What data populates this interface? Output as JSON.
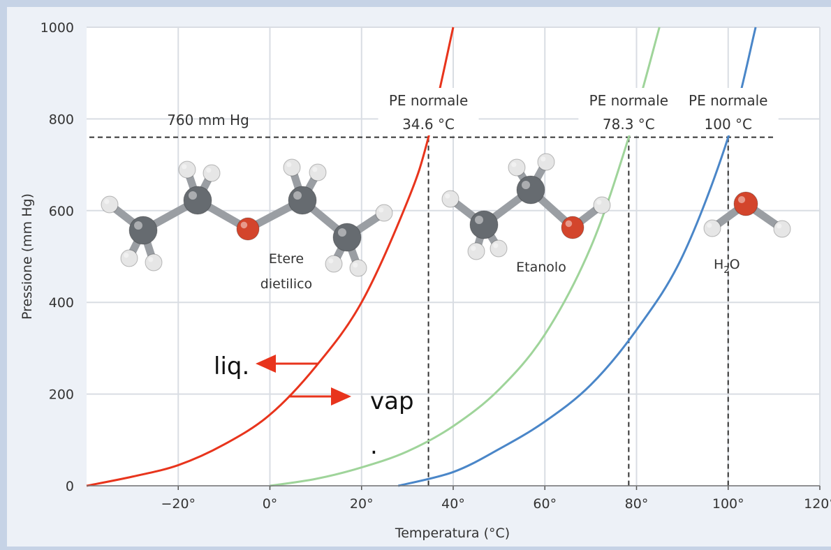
{
  "chart_data": {
    "type": "line",
    "xlabel": "Temperatura (°C)",
    "ylabel": "Pressione (mm Hg)",
    "xlim": [
      -40,
      120
    ],
    "ylim": [
      0,
      1000
    ],
    "x_ticks": [
      {
        "v": -20,
        "label": "−20°"
      },
      {
        "v": 0,
        "label": "0°"
      },
      {
        "v": 20,
        "label": "20°"
      },
      {
        "v": 40,
        "label": "40°"
      },
      {
        "v": 60,
        "label": "60°"
      },
      {
        "v": 80,
        "label": "80°"
      },
      {
        "v": 100,
        "label": "100°"
      },
      {
        "v": 120,
        "label": "120°"
      }
    ],
    "y_ticks": [
      {
        "v": 0,
        "label": "0"
      },
      {
        "v": 200,
        "label": "200"
      },
      {
        "v": 400,
        "label": "400"
      },
      {
        "v": 600,
        "label": "600"
      },
      {
        "v": 800,
        "label": "800"
      },
      {
        "v": 1000,
        "label": "1000"
      }
    ],
    "grid": true,
    "series": [
      {
        "key": "etere",
        "color": "#e8341c",
        "x": [
          -40,
          -30,
          -20,
          -10,
          0,
          10,
          20,
          30,
          34.6,
          40
        ],
        "y": [
          0,
          20,
          45,
          90,
          155,
          260,
          400,
          620,
          760,
          1000
        ]
      },
      {
        "key": "etanolo",
        "color": "#9fd49a",
        "x": [
          0,
          10,
          20,
          30,
          40,
          50,
          60,
          70,
          78.3,
          85
        ],
        "y": [
          0,
          15,
          40,
          75,
          130,
          210,
          330,
          520,
          760,
          1000
        ]
      },
      {
        "key": "acqua",
        "color": "#4a86c8",
        "x": [
          28,
          40,
          50,
          60,
          70,
          80,
          90,
          100,
          106
        ],
        "y": [
          0,
          30,
          80,
          140,
          220,
          340,
          500,
          760,
          1000
        ]
      }
    ],
    "reference_line": {
      "y": 760,
      "label": "760 mm Hg"
    },
    "boiling_points": [
      {
        "x": 34.6,
        "line1": "PE normale",
        "line2": "34.6 °C"
      },
      {
        "x": 78.3,
        "line1": "PE normale",
        "line2": "78.3 °C"
      },
      {
        "x": 100,
        "line1": "PE normale",
        "line2": "100 °C"
      }
    ],
    "molecule_labels": {
      "etere_line1": "Etere",
      "etere_line2": "dietilico",
      "etanolo": "Etanolo",
      "acqua_main": "H",
      "acqua_sub": "2",
      "acqua_end": "O"
    },
    "hand_annotations": {
      "liq": "liq.",
      "vap": "vap",
      "dot": "."
    },
    "colors": {
      "ether_atoms_carbon": "#666b70",
      "hydrogen": "#e6e6e6",
      "oxygen": "#d3452c",
      "arrow": "#e8341c"
    }
  }
}
